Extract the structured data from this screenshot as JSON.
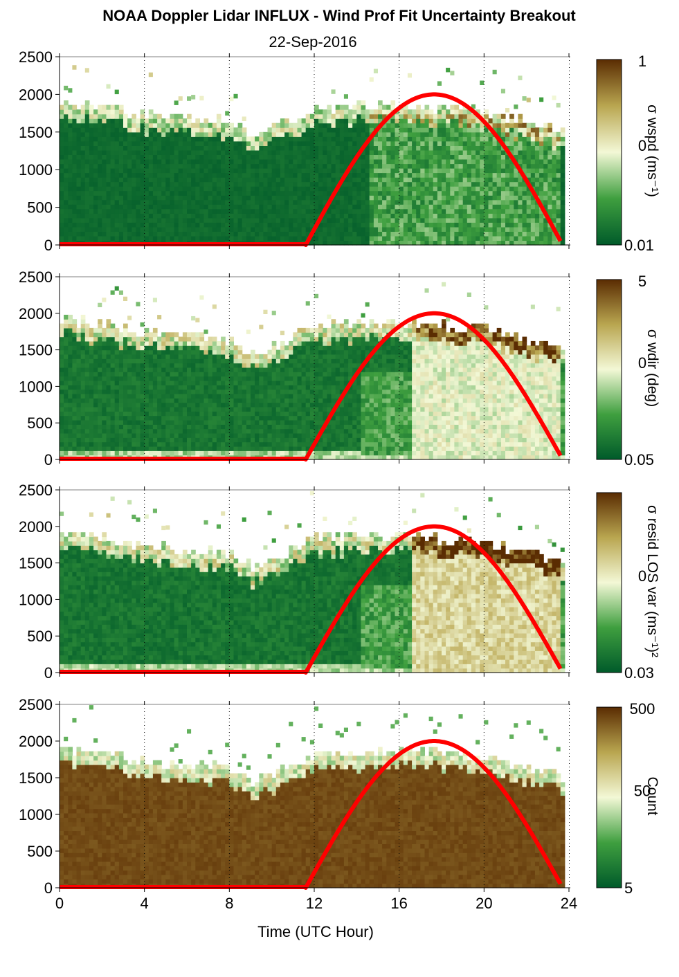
{
  "title": "NOAA Doppler Lidar INFLUX - Wind Prof Fit Uncertainty Breakout",
  "subtitle": "22-Sep-2016",
  "colors": {
    "solar_curve": "#ff0000",
    "colormap": [
      "#005a2a",
      "#3f9f3f",
      "#f3f8d6",
      "#b9a650",
      "#5a2c02"
    ]
  },
  "chart_data": [
    {
      "type": "heatmap",
      "title": "",
      "xlabel": "",
      "ylabel": "",
      "xlim": [
        0,
        24
      ],
      "ylim": [
        0,
        2500
      ],
      "xticks": [
        "0",
        "4",
        "8",
        "12",
        "16",
        "20",
        "24"
      ],
      "yticks": [
        "0",
        "500",
        "1000",
        "1500",
        "2000",
        "2500"
      ],
      "colorbar": {
        "label": "σ wspd (ms⁻¹)",
        "ticks": [
          "1",
          "0",
          "0.01"
        ],
        "scale": "log"
      },
      "approx_top_of_data_m": [
        {
          "t": 0,
          "h": 1900
        },
        {
          "t": 4,
          "h": 1700
        },
        {
          "t": 8,
          "h": 1600
        },
        {
          "t": 9,
          "h": 1400
        },
        {
          "t": 12,
          "h": 1800
        },
        {
          "t": 16,
          "h": 1850
        },
        {
          "t": 20,
          "h": 1750
        },
        {
          "t": 23.7,
          "h": 1500
        }
      ],
      "solar_curve_peak": {
        "t": 17.6,
        "h": 2000
      },
      "grid": "vertical dotted"
    },
    {
      "type": "heatmap",
      "title": "",
      "xlabel": "",
      "ylabel": "",
      "xlim": [
        0,
        24
      ],
      "ylim": [
        0,
        2500
      ],
      "xticks": [
        "0",
        "4",
        "8",
        "12",
        "16",
        "20",
        "24"
      ],
      "yticks": [
        "0",
        "500",
        "1000",
        "1500",
        "2000",
        "2500"
      ],
      "colorbar": {
        "label": "σ wdir (deg)",
        "ticks": [
          "5",
          "0",
          "0.05"
        ],
        "scale": "log"
      },
      "solar_curve_peak": {
        "t": 17.6,
        "h": 2000
      },
      "grid": "vertical dotted"
    },
    {
      "type": "heatmap",
      "title": "",
      "xlabel": "",
      "ylabel": "",
      "xlim": [
        0,
        24
      ],
      "ylim": [
        0,
        2500
      ],
      "xticks": [
        "0",
        "4",
        "8",
        "12",
        "16",
        "20",
        "24"
      ],
      "yticks": [
        "0",
        "500",
        "1000",
        "1500",
        "2000",
        "2500"
      ],
      "colorbar": {
        "label": "σ resid LOS var (ms⁻¹)²",
        "ticks": [
          "",
          "0",
          "0.03"
        ],
        "scale": "log"
      },
      "solar_curve_peak": {
        "t": 17.6,
        "h": 2000
      },
      "grid": "vertical dotted"
    },
    {
      "type": "heatmap",
      "title": "",
      "xlabel": "Time (UTC Hour)",
      "ylabel": "",
      "xlim": [
        0,
        24
      ],
      "ylim": [
        0,
        2500
      ],
      "xticks": [
        "0",
        "4",
        "8",
        "12",
        "16",
        "20",
        "24"
      ],
      "yticks": [
        "0",
        "500",
        "1000",
        "1500",
        "2000",
        "2500"
      ],
      "colorbar": {
        "label": "Count",
        "ticks": [
          "500",
          "50",
          "5"
        ],
        "scale": "log"
      },
      "solar_curve_peak": {
        "t": 17.6,
        "h": 2000
      },
      "grid": "vertical dotted"
    }
  ]
}
